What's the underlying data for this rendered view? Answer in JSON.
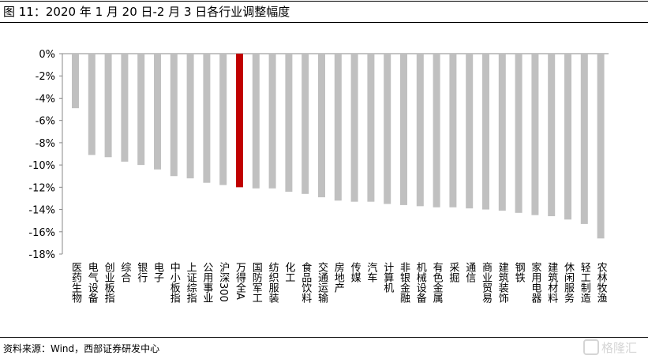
{
  "page": {
    "title": "图 11：2020 年 1 月 20 日-2 月 3 日各行业调整幅度",
    "source": "资料来源：Wind，西部证券研发中心",
    "watermark": "格隆汇"
  },
  "chart_data": {
    "type": "bar",
    "title": "",
    "xlabel": "",
    "ylabel": "",
    "ylim": [
      -18,
      0
    ],
    "yticks": [
      0,
      -2,
      -4,
      -6,
      -8,
      -10,
      -12,
      -14,
      -16,
      -18
    ],
    "ytick_labels": [
      "0%",
      "-2%",
      "-4%",
      "-6%",
      "-8%",
      "-10%",
      "-12%",
      "-14%",
      "-16%",
      "-18%"
    ],
    "grid": false,
    "legend": "none",
    "colors": {
      "default": "#c0c0c0",
      "highlight": "#c00000"
    },
    "highlight_index": 10,
    "categories": [
      "医药生物",
      "电气设备",
      "创业板指",
      "综合",
      "银行",
      "电子",
      "中小板指",
      "上证综指",
      "公用事业",
      "沪深300",
      "万得全A",
      "国防军工",
      "纺织服装",
      "化工",
      "食品饮料",
      "交通运输",
      "房地产",
      "传媒",
      "汽车",
      "计算机",
      "非银金融",
      "机械设备",
      "有色金属",
      "采掘",
      "通信",
      "商业贸易",
      "建筑装饰",
      "钢铁",
      "家用电器",
      "建筑材料",
      "休闲服务",
      "轻工制造",
      "农林牧渔"
    ],
    "values": [
      -4.9,
      -9.1,
      -9.3,
      -9.7,
      -10.0,
      -10.4,
      -11.0,
      -11.2,
      -11.6,
      -11.8,
      -12.0,
      -12.1,
      -12.1,
      -12.4,
      -12.6,
      -12.9,
      -13.2,
      -13.3,
      -13.3,
      -13.5,
      -13.6,
      -13.7,
      -13.8,
      -13.8,
      -13.9,
      -14.0,
      -14.1,
      -14.3,
      -14.5,
      -14.6,
      -14.9,
      -15.3,
      -16.6
    ]
  }
}
